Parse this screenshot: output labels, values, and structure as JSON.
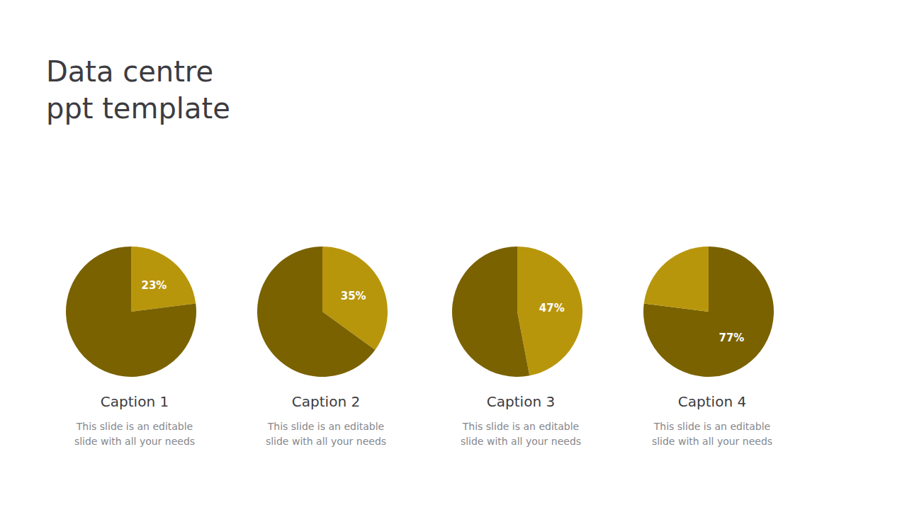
{
  "title": "Data centre\nppt template",
  "chart_data": [
    {
      "type": "pie",
      "title": "Caption 1",
      "subtitle": "This slide is an editable\nslide with all your needs",
      "values": [
        23,
        77
      ],
      "value_labels": [
        "23%",
        null
      ],
      "colors": [
        "#B8960C",
        "#7A6200"
      ]
    },
    {
      "type": "pie",
      "title": "Caption 2",
      "subtitle": "This slide is an editable\nslide with all your needs",
      "values": [
        35,
        65
      ],
      "value_labels": [
        "35%",
        null
      ],
      "colors": [
        "#B8960C",
        "#7A6200"
      ]
    },
    {
      "type": "pie",
      "title": "Caption 3",
      "subtitle": "This slide is an editable\nslide with all your needs",
      "values": [
        47,
        53
      ],
      "value_labels": [
        "47%",
        null
      ],
      "colors": [
        "#B8960C",
        "#7A6200"
      ]
    },
    {
      "type": "pie",
      "title": "Caption 4",
      "subtitle": "This slide is an editable\nslide with all your needs",
      "values": [
        77,
        23
      ],
      "value_labels": [
        "77%",
        null
      ],
      "colors": [
        "#7A6200",
        "#B8960C"
      ]
    }
  ]
}
